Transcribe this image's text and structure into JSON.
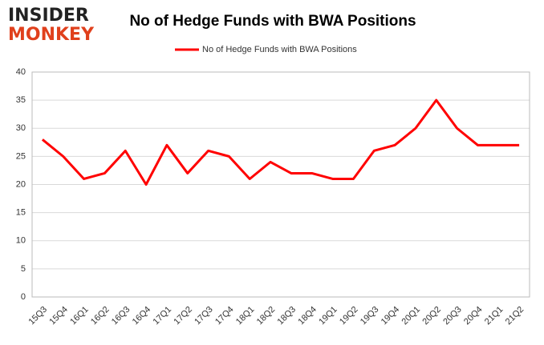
{
  "logo": [
    "INSIDER",
    "MONKEY"
  ],
  "chart_data": {
    "type": "line",
    "title": "No of Hedge Funds with BWA Positions",
    "categories": [
      "15Q3",
      "15Q4",
      "16Q1",
      "16Q2",
      "16Q3",
      "16Q4",
      "17Q1",
      "17Q2",
      "17Q3",
      "17Q4",
      "18Q1",
      "18Q2",
      "18Q3",
      "18Q4",
      "19Q1",
      "19Q2",
      "19Q3",
      "19Q4",
      "20Q1",
      "20Q2",
      "20Q3",
      "20Q4",
      "21Q1",
      "21Q2"
    ],
    "series": [
      {
        "name": "No of Hedge Funds with BWA Positions",
        "color": "#ff0000",
        "values": [
          28,
          25,
          21,
          22,
          26,
          20,
          27,
          22,
          26,
          25,
          21,
          24,
          22,
          22,
          21,
          21,
          26,
          27,
          30,
          35,
          30,
          27,
          27,
          27
        ]
      }
    ],
    "ylim": [
      0,
      40
    ],
    "yticks": [
      0,
      5,
      10,
      15,
      20,
      25,
      30,
      35,
      40
    ],
    "grid": true,
    "legend": "top"
  }
}
